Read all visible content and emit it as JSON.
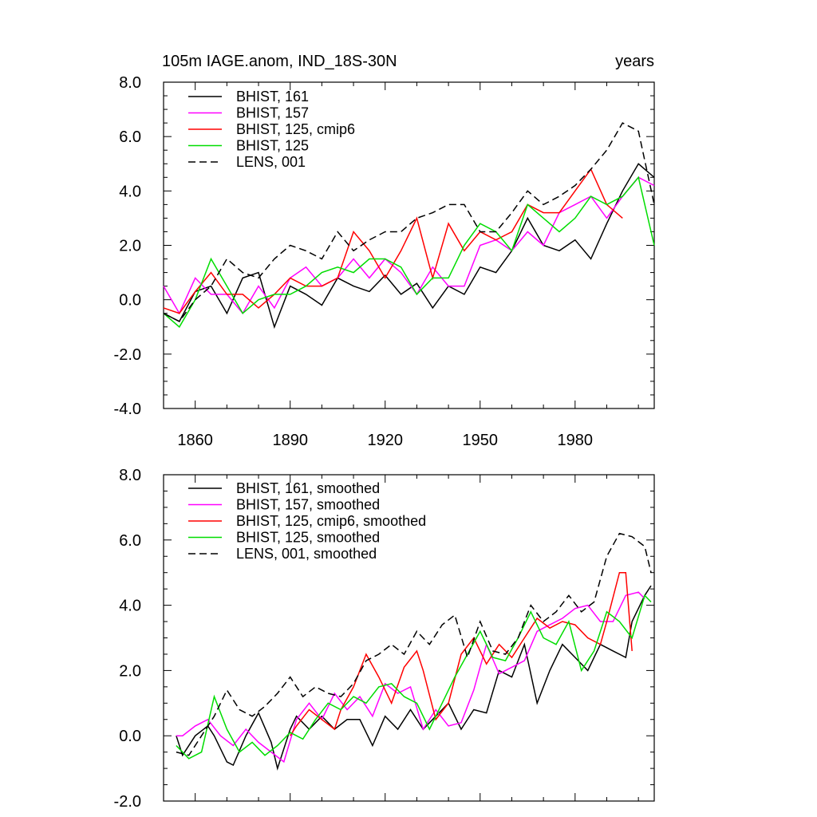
{
  "title_left": "105m IAGE.anom, IND_18S-30N",
  "title_right": "years",
  "chart_data": [
    {
      "type": "line",
      "xlim": [
        1850,
        2005
      ],
      "ylim": [
        -4,
        8
      ],
      "yticks": [
        -4,
        -2,
        0,
        2,
        4,
        6,
        8
      ],
      "ytick_labels": [
        "-4.0",
        "-2.0",
        "0.0",
        "2.0",
        "4.0",
        "6.0",
        "8.0"
      ],
      "xticks": [
        1860,
        1890,
        1920,
        1950,
        1980
      ],
      "xtick_labels": [
        "1860",
        "1890",
        "1920",
        "1950",
        "1980"
      ],
      "legend_position": "top-left",
      "series": [
        {
          "name": "BHIST, 161",
          "color": "#000000",
          "dash": "solid",
          "x": [
            1850,
            1855,
            1860,
            1865,
            1870,
            1875,
            1880,
            1885,
            1890,
            1895,
            1900,
            1905,
            1910,
            1915,
            1920,
            1925,
            1930,
            1935,
            1940,
            1945,
            1950,
            1955,
            1960,
            1965,
            1970,
            1975,
            1980,
            1985,
            1990,
            1995,
            2000,
            2005
          ],
          "y": [
            -0.5,
            -0.8,
            0.3,
            0.5,
            -0.5,
            0.8,
            1.0,
            -1.0,
            0.5,
            0.2,
            -0.2,
            0.8,
            0.5,
            0.3,
            0.9,
            0.2,
            0.6,
            -0.3,
            0.5,
            0.2,
            1.2,
            1.0,
            1.8,
            3.0,
            2.0,
            1.8,
            2.2,
            1.5,
            2.8,
            4.0,
            5.0,
            4.5
          ]
        },
        {
          "name": "BHIST, 157",
          "color": "#ff00ff",
          "dash": "solid",
          "x": [
            1850,
            1855,
            1860,
            1865,
            1870,
            1875,
            1880,
            1885,
            1890,
            1895,
            1900,
            1905,
            1910,
            1915,
            1920,
            1925,
            1930,
            1935,
            1940,
            1945,
            1950,
            1955,
            1960,
            1965,
            1970,
            1975,
            1980,
            1985,
            1990,
            1995,
            2000,
            2005
          ],
          "y": [
            0.5,
            -0.5,
            0.8,
            0.2,
            0.2,
            -0.5,
            0.5,
            -0.3,
            0.8,
            1.2,
            0.5,
            0.8,
            1.5,
            0.8,
            1.5,
            1.0,
            0.2,
            1.2,
            0.5,
            0.5,
            2.0,
            2.2,
            1.8,
            2.5,
            2.0,
            3.2,
            3.5,
            3.8,
            3.0,
            3.8,
            4.5,
            4.2
          ]
        },
        {
          "name": "BHIST, 125, cmip6",
          "color": "#ff0000",
          "dash": "solid",
          "x": [
            1850,
            1855,
            1860,
            1865,
            1870,
            1875,
            1880,
            1885,
            1890,
            1895,
            1900,
            1905,
            1910,
            1915,
            1920,
            1925,
            1930,
            1935,
            1940,
            1945,
            1950,
            1955,
            1960,
            1965,
            1970,
            1975,
            1980,
            1985,
            1990,
            1995
          ],
          "y": [
            -0.3,
            -0.5,
            0.3,
            1.0,
            0.2,
            0.2,
            -0.3,
            0.2,
            0.8,
            0.5,
            0.5,
            0.8,
            2.5,
            1.8,
            0.8,
            1.8,
            3.0,
            0.8,
            2.8,
            1.8,
            2.5,
            2.2,
            2.5,
            3.5,
            3.2,
            3.2,
            4.0,
            4.8,
            3.5,
            3.0
          ]
        },
        {
          "name": "BHIST, 125",
          "color": "#00dd00",
          "dash": "solid",
          "x": [
            1850,
            1855,
            1860,
            1865,
            1870,
            1875,
            1880,
            1885,
            1890,
            1895,
            1900,
            1905,
            1910,
            1915,
            1920,
            1925,
            1930,
            1935,
            1940,
            1945,
            1950,
            1955,
            1960,
            1965,
            1970,
            1975,
            1980,
            1985,
            1990,
            1995,
            2000,
            2005
          ],
          "y": [
            -0.5,
            -1.0,
            0.0,
            1.5,
            0.5,
            -0.5,
            0.0,
            0.2,
            0.2,
            0.5,
            1.0,
            1.2,
            1.0,
            1.5,
            1.5,
            1.2,
            0.2,
            0.8,
            0.8,
            2.0,
            2.8,
            2.5,
            1.8,
            3.5,
            3.0,
            2.5,
            3.0,
            3.8,
            3.5,
            3.8,
            4.5,
            2.0
          ]
        },
        {
          "name": "LENS, 001",
          "color": "#000000",
          "dash": "dashed",
          "x": [
            1850,
            1855,
            1860,
            1865,
            1870,
            1875,
            1880,
            1885,
            1890,
            1895,
            1900,
            1905,
            1910,
            1915,
            1920,
            1925,
            1930,
            1935,
            1940,
            1945,
            1950,
            1955,
            1960,
            1965,
            1970,
            1975,
            1980,
            1985,
            1990,
            1995,
            2000,
            2005
          ],
          "y": [
            -0.5,
            -0.8,
            0.0,
            0.5,
            1.5,
            1.0,
            0.8,
            1.5,
            2.0,
            1.8,
            1.5,
            2.5,
            1.8,
            2.2,
            2.5,
            2.5,
            3.0,
            3.2,
            3.5,
            3.5,
            2.5,
            2.5,
            3.2,
            4.0,
            3.5,
            3.8,
            4.2,
            4.8,
            5.5,
            6.5,
            6.2,
            3.5
          ]
        }
      ]
    },
    {
      "type": "line",
      "xlim": [
        1850,
        2005
      ],
      "ylim": [
        -2,
        8
      ],
      "yticks": [
        -2,
        0,
        2,
        4,
        6,
        8
      ],
      "ytick_labels": [
        "-2.0",
        "0.0",
        "2.0",
        "4.0",
        "6.0",
        "8.0"
      ],
      "legend_position": "top-left",
      "series": [
        {
          "name": "BHIST, 161, smoothed",
          "color": "#000000",
          "dash": "solid",
          "x": [
            1854,
            1856,
            1860,
            1864,
            1866,
            1870,
            1872,
            1876,
            1880,
            1884,
            1886,
            1890,
            1892,
            1896,
            1900,
            1904,
            1908,
            1912,
            1916,
            1920,
            1924,
            1928,
            1932,
            1936,
            1940,
            1944,
            1948,
            1952,
            1956,
            1960,
            1964,
            1968,
            1972,
            1976,
            1980,
            1984,
            1988,
            1992,
            1996,
            1998,
            2002,
            2004
          ],
          "y": [
            0.0,
            -0.6,
            0.0,
            0.3,
            0.0,
            -0.8,
            -0.9,
            0.0,
            0.7,
            -0.2,
            -1.0,
            0.2,
            0.6,
            0.2,
            0.6,
            0.2,
            0.5,
            0.5,
            -0.3,
            0.6,
            0.2,
            0.8,
            0.2,
            0.6,
            1.0,
            0.2,
            0.8,
            0.7,
            2.0,
            1.8,
            2.8,
            1.0,
            2.0,
            2.8,
            2.4,
            2.0,
            2.8,
            2.6,
            2.4,
            3.5,
            4.3,
            4.6
          ]
        },
        {
          "name": "BHIST, 157, smoothed",
          "color": "#ff00ff",
          "dash": "solid",
          "x": [
            1854,
            1856,
            1860,
            1864,
            1868,
            1872,
            1876,
            1880,
            1884,
            1888,
            1892,
            1896,
            1900,
            1904,
            1908,
            1912,
            1916,
            1920,
            1924,
            1928,
            1932,
            1936,
            1940,
            1944,
            1948,
            1952,
            1956,
            1960,
            1964,
            1968,
            1972,
            1976,
            1980,
            1984,
            1988,
            1992,
            1996,
            2000,
            2002
          ],
          "y": [
            0.0,
            0.0,
            0.3,
            0.5,
            0.0,
            -0.3,
            0.2,
            -0.2,
            -0.5,
            -0.8,
            0.5,
            1.0,
            0.5,
            1.3,
            0.8,
            1.2,
            0.6,
            1.6,
            1.3,
            1.5,
            0.2,
            0.8,
            0.3,
            0.4,
            1.4,
            2.8,
            1.9,
            2.1,
            2.3,
            3.2,
            3.4,
            3.6,
            3.9,
            4.0,
            3.5,
            3.5,
            4.3,
            4.4,
            4.2
          ]
        },
        {
          "name": "BHIST, 125, cmip6, smoothed",
          "color": "#ff0000",
          "dash": "solid",
          "x": [
            1890,
            1892,
            1896,
            1900,
            1904,
            1906,
            1910,
            1914,
            1918,
            1922,
            1926,
            1930,
            1932,
            1936,
            1940,
            1944,
            1948,
            1952,
            1956,
            1960,
            1964,
            1968,
            1972,
            1976,
            1980,
            1984,
            1988,
            1990,
            1994,
            1996,
            1998
          ],
          "y": [
            0.0,
            0.3,
            0.8,
            0.5,
            0.2,
            0.8,
            1.5,
            2.5,
            1.8,
            1.0,
            2.1,
            2.6,
            2.0,
            0.5,
            1.0,
            2.5,
            3.0,
            2.2,
            2.8,
            2.4,
            3.0,
            3.6,
            3.3,
            3.5,
            3.4,
            3.0,
            2.8,
            3.5,
            5.0,
            5.0,
            2.6
          ]
        },
        {
          "name": "BHIST, 125, smoothed",
          "color": "#00dd00",
          "dash": "solid",
          "x": [
            1854,
            1858,
            1862,
            1866,
            1870,
            1874,
            1878,
            1882,
            1886,
            1890,
            1894,
            1898,
            1902,
            1906,
            1910,
            1914,
            1918,
            1922,
            1926,
            1930,
            1934,
            1938,
            1942,
            1946,
            1950,
            1954,
            1958,
            1962,
            1966,
            1970,
            1974,
            1978,
            1982,
            1986,
            1990,
            1994,
            1998,
            2002,
            2004
          ],
          "y": [
            -0.3,
            -0.7,
            -0.5,
            1.2,
            0.2,
            -0.5,
            -0.2,
            -0.6,
            -0.3,
            0.1,
            -0.1,
            0.5,
            1.0,
            0.8,
            1.2,
            1.0,
            1.5,
            1.6,
            1.2,
            1.0,
            0.2,
            1.0,
            1.8,
            2.5,
            3.2,
            2.4,
            2.3,
            3.0,
            3.8,
            3.0,
            2.8,
            3.5,
            2.0,
            2.6,
            3.8,
            3.5,
            3.0,
            4.3,
            4.1
          ]
        },
        {
          "name": "LENS, 001, smoothed",
          "color": "#000000",
          "dash": "dashed",
          "x": [
            1854,
            1858,
            1862,
            1866,
            1870,
            1874,
            1878,
            1882,
            1886,
            1890,
            1894,
            1898,
            1902,
            1906,
            1910,
            1914,
            1918,
            1922,
            1926,
            1930,
            1934,
            1938,
            1942,
            1946,
            1950,
            1954,
            1958,
            1962,
            1966,
            1970,
            1974,
            1978,
            1982,
            1986,
            1990,
            1994,
            1998,
            2002,
            2004
          ],
          "y": [
            -0.5,
            -0.6,
            0.0,
            0.6,
            1.4,
            0.8,
            0.6,
            0.9,
            1.3,
            1.8,
            1.2,
            1.5,
            1.3,
            1.2,
            1.6,
            2.3,
            2.5,
            2.8,
            2.5,
            3.2,
            2.8,
            3.4,
            3.7,
            2.4,
            3.5,
            2.6,
            2.5,
            3.0,
            4.0,
            3.5,
            3.8,
            4.3,
            3.8,
            4.1,
            5.5,
            6.2,
            6.1,
            5.8,
            5.0
          ]
        }
      ]
    }
  ]
}
